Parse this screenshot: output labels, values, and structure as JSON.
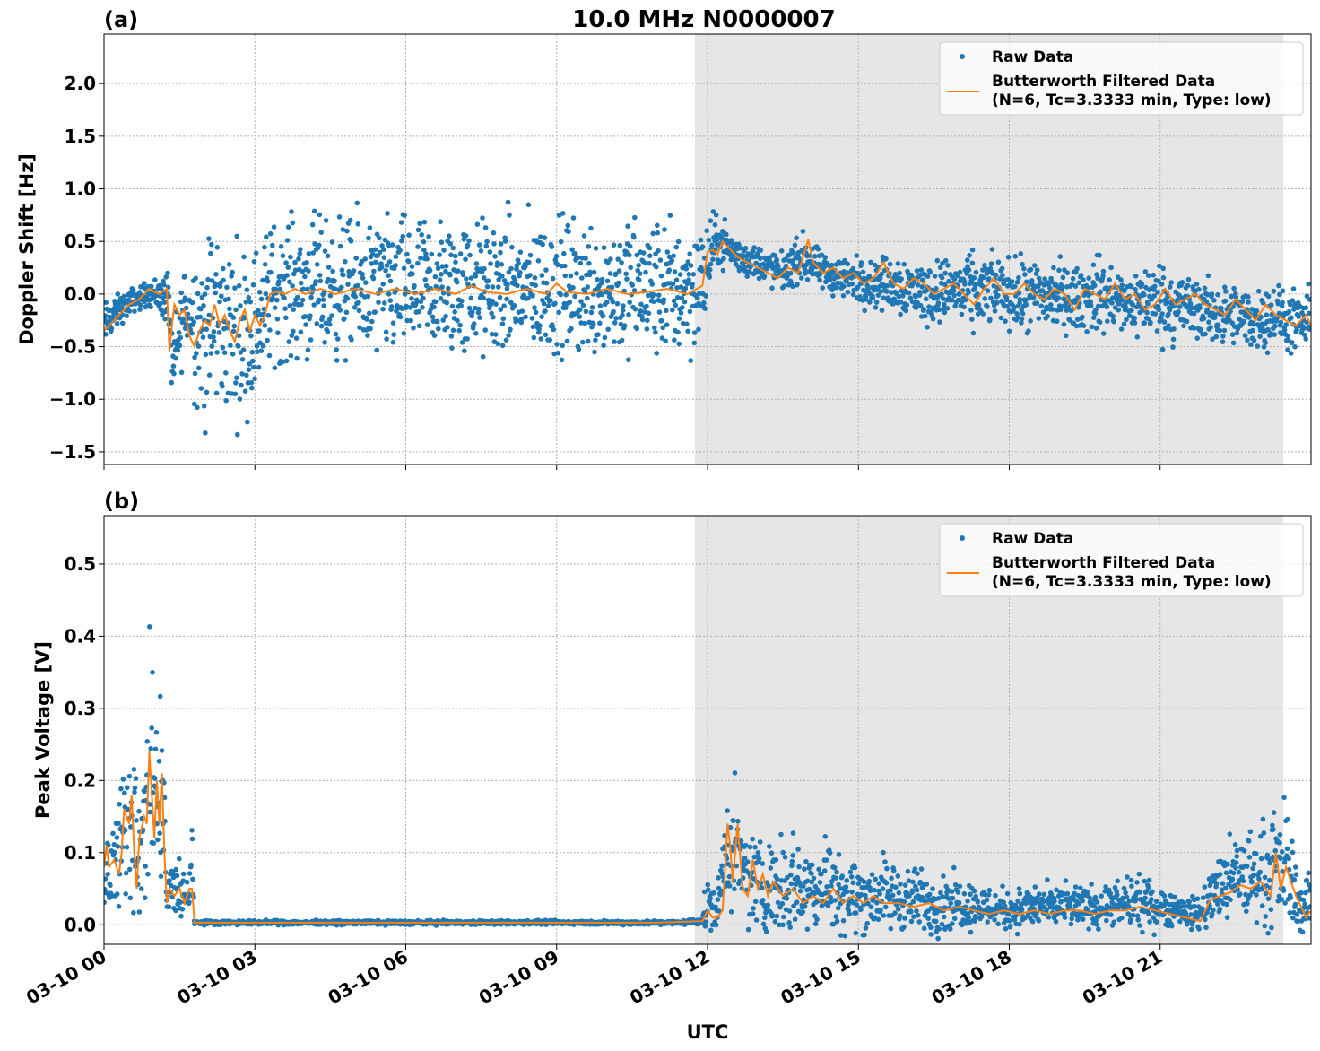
{
  "figure": {
    "title": "10.0 MHz N0000007",
    "xlabel": "UTC"
  },
  "colors": {
    "raw": "#1f77b4",
    "filtered": "#ff7f0e",
    "shade": "#e6e6e6",
    "grid": "#b0b0b0"
  },
  "chart_data": [
    {
      "type": "scatter",
      "panel_label": "(a)",
      "ylabel": "Doppler Shift [Hz]",
      "xlim": [
        "03-10 00:00",
        "03-10 24:00"
      ],
      "ylim": [
        -1.62,
        2.47
      ],
      "yticks": [
        -1.5,
        -1.0,
        -0.5,
        0.0,
        0.5,
        1.0,
        1.5,
        2.0
      ],
      "ytick_labels": [
        "−1.5",
        "−1.0",
        "−0.5",
        "0.0",
        "0.5",
        "1.0",
        "1.5",
        "2.0"
      ],
      "xtick_labels": [
        "03-10 00",
        "03-10 03",
        "03-10 06",
        "03-10 09",
        "03-10 12",
        "03-10 15",
        "03-10 18",
        "03-10 21"
      ],
      "xticks_hours": [
        0,
        3,
        6,
        9,
        12,
        15,
        18,
        21
      ],
      "shaded_hours": [
        11.75,
        23.45
      ],
      "grid": true,
      "legend": "top-right",
      "series": [
        {
          "name": "Raw Data",
          "kind": "points",
          "x_hours": [
            0.0,
            0.3,
            0.6,
            0.9,
            1.0,
            1.3,
            1.35,
            1.6,
            1.9,
            2.0,
            2.2,
            2.4,
            2.7,
            3.0,
            3.3,
            3.6,
            4.0,
            4.5,
            5.0,
            5.5,
            6.0,
            6.5,
            7.0,
            7.5,
            8.0,
            8.5,
            9.0,
            9.5,
            10.0,
            10.5,
            11.0,
            11.5,
            11.9,
            12.1,
            12.3,
            12.6,
            13.0,
            13.5,
            13.9,
            14.3,
            14.8,
            15.3,
            15.8,
            16.3,
            16.8,
            17.3,
            17.8,
            18.3,
            18.8,
            19.3,
            19.8,
            20.3,
            20.8,
            21.3,
            21.8,
            22.3,
            22.8,
            23.3,
            23.7,
            24.0
          ],
          "y_center": [
            -0.3,
            -0.15,
            -0.05,
            0.0,
            0.0,
            -0.05,
            -0.8,
            -0.1,
            -0.3,
            -0.4,
            -0.2,
            -0.3,
            -0.35,
            -0.3,
            0.0,
            0.05,
            0.05,
            0.05,
            0.05,
            0.05,
            0.05,
            0.05,
            0.05,
            0.05,
            0.05,
            0.05,
            0.05,
            0.05,
            0.05,
            0.05,
            0.05,
            0.05,
            0.1,
            0.45,
            0.5,
            0.35,
            0.3,
            0.2,
            0.35,
            0.2,
            0.15,
            0.1,
            0.1,
            0.0,
            0.05,
            0.0,
            0.05,
            -0.05,
            0.0,
            -0.05,
            0.0,
            -0.1,
            -0.05,
            -0.1,
            -0.15,
            -0.2,
            -0.25,
            -0.2,
            -0.3,
            -0.25
          ],
          "y_spread": [
            0.15,
            0.1,
            0.08,
            0.08,
            0.1,
            0.2,
            0.25,
            0.3,
            0.55,
            0.65,
            0.6,
            0.55,
            0.55,
            0.5,
            0.45,
            0.45,
            0.45,
            0.45,
            0.45,
            0.45,
            0.45,
            0.45,
            0.45,
            0.45,
            0.45,
            0.45,
            0.45,
            0.45,
            0.45,
            0.45,
            0.45,
            0.45,
            0.4,
            0.2,
            0.15,
            0.12,
            0.12,
            0.12,
            0.15,
            0.12,
            0.15,
            0.15,
            0.2,
            0.2,
            0.2,
            0.25,
            0.2,
            0.25,
            0.25,
            0.2,
            0.25,
            0.2,
            0.25,
            0.25,
            0.2,
            0.2,
            0.2,
            0.2,
            0.2,
            0.2
          ]
        },
        {
          "name": "Butterworth Filtered Data\n(N=6, Tc=3.3333 min, Type: low)",
          "legend_line1": "Butterworth Filtered Data",
          "legend_line2": "(N=6, Tc=3.3333 min, Type: low)",
          "kind": "line",
          "x_hours": [
            0.0,
            0.1,
            0.3,
            0.5,
            0.7,
            0.9,
            1.0,
            1.1,
            1.25,
            1.3,
            1.35,
            1.4,
            1.5,
            1.6,
            1.7,
            1.8,
            1.9,
            2.0,
            2.1,
            2.2,
            2.3,
            2.4,
            2.5,
            2.6,
            2.7,
            2.8,
            2.9,
            3.0,
            3.1,
            3.2,
            3.3,
            3.4,
            3.6,
            3.8,
            4.0,
            4.3,
            4.6,
            5.0,
            5.4,
            5.8,
            6.2,
            6.6,
            7.0,
            7.3,
            7.6,
            8.0,
            8.4,
            8.8,
            9.0,
            9.2,
            9.6,
            10.0,
            10.4,
            10.8,
            11.2,
            11.6,
            11.9,
            12.0,
            12.1,
            12.2,
            12.3,
            12.4,
            12.5,
            12.6,
            12.8,
            13.0,
            13.2,
            13.4,
            13.6,
            13.8,
            13.9,
            14.0,
            14.1,
            14.3,
            14.5,
            14.7,
            14.9,
            15.1,
            15.3,
            15.5,
            15.7,
            15.9,
            16.1,
            16.3,
            16.5,
            16.7,
            16.9,
            17.1,
            17.3,
            17.5,
            17.7,
            17.9,
            18.1,
            18.3,
            18.5,
            18.7,
            18.9,
            19.1,
            19.3,
            19.5,
            19.7,
            19.9,
            20.1,
            20.3,
            20.5,
            20.7,
            20.9,
            21.1,
            21.3,
            21.5,
            21.7,
            21.9,
            22.1,
            22.3,
            22.5,
            22.7,
            22.9,
            23.1,
            23.3,
            23.5,
            23.7,
            23.9,
            24.0
          ],
          "y": [
            -0.35,
            -0.3,
            -0.2,
            -0.1,
            -0.05,
            0.05,
            0.02,
            0.0,
            0.05,
            -0.55,
            -0.3,
            -0.1,
            -0.2,
            -0.15,
            -0.4,
            -0.5,
            -0.35,
            -0.25,
            -0.3,
            -0.1,
            -0.3,
            -0.2,
            -0.35,
            -0.45,
            -0.25,
            -0.15,
            -0.35,
            -0.2,
            -0.3,
            -0.2,
            0.0,
            0.02,
            0.0,
            0.05,
            0.0,
            0.05,
            0.0,
            0.05,
            0.0,
            0.05,
            0.0,
            0.05,
            0.0,
            0.08,
            0.02,
            0.0,
            0.05,
            0.0,
            0.1,
            0.02,
            0.0,
            0.05,
            0.0,
            0.02,
            0.05,
            0.0,
            0.08,
            0.4,
            0.42,
            0.38,
            0.5,
            0.45,
            0.4,
            0.35,
            0.3,
            0.25,
            0.2,
            0.15,
            0.25,
            0.2,
            0.35,
            0.52,
            0.3,
            0.2,
            0.25,
            0.15,
            0.2,
            0.1,
            0.15,
            0.3,
            0.1,
            0.05,
            0.15,
            0.1,
            0.0,
            0.05,
            0.1,
            0.0,
            -0.1,
            0.05,
            0.15,
            0.0,
            0.0,
            0.1,
            0.0,
            -0.05,
            0.05,
            0.0,
            -0.15,
            0.05,
            0.0,
            -0.05,
            0.1,
            -0.05,
            0.0,
            -0.15,
            -0.1,
            0.05,
            -0.1,
            -0.05,
            0.0,
            -0.1,
            -0.15,
            -0.2,
            -0.05,
            -0.15,
            -0.25,
            -0.1,
            -0.2,
            -0.25,
            -0.3,
            -0.2,
            -0.3
          ]
        }
      ]
    },
    {
      "type": "scatter",
      "panel_label": "(b)",
      "ylabel": "Peak Voltage [V]",
      "xlim": [
        "03-10 00:00",
        "03-10 24:00"
      ],
      "ylim": [
        -0.027,
        0.567
      ],
      "yticks": [
        0.0,
        0.1,
        0.2,
        0.3,
        0.4,
        0.5
      ],
      "ytick_labels": [
        "0.0",
        "0.1",
        "0.2",
        "0.3",
        "0.4",
        "0.5"
      ],
      "xtick_labels": [
        "03-10 00",
        "03-10 03",
        "03-10 06",
        "03-10 09",
        "03-10 12",
        "03-10 15",
        "03-10 18",
        "03-10 21"
      ],
      "xticks_hours": [
        0,
        3,
        6,
        9,
        12,
        15,
        18,
        21
      ],
      "shaded_hours": [
        11.75,
        23.45
      ],
      "grid": true,
      "legend": "top-right",
      "series": [
        {
          "name": "Raw Data",
          "kind": "points",
          "x_hours": [
            0.0,
            0.15,
            0.3,
            0.45,
            0.6,
            0.75,
            0.85,
            0.95,
            1.05,
            1.15,
            1.25,
            1.4,
            1.55,
            1.7,
            1.75,
            1.8,
            2.5,
            4.0,
            6.0,
            8.0,
            10.0,
            11.5,
            11.9,
            12.0,
            12.2,
            12.4,
            12.5,
            12.7,
            13.0,
            13.3,
            13.6,
            14.0,
            14.4,
            14.8,
            15.2,
            15.6,
            16.0,
            16.5,
            17.0,
            17.5,
            18.0,
            18.5,
            19.0,
            19.5,
            20.0,
            20.5,
            21.0,
            21.4,
            21.8,
            22.0,
            22.4,
            22.8,
            23.2,
            23.5,
            23.8,
            24.0
          ],
          "y_center": [
            0.09,
            0.07,
            0.1,
            0.13,
            0.17,
            0.08,
            0.18,
            0.22,
            0.15,
            0.2,
            0.04,
            0.05,
            0.04,
            0.05,
            0.1,
            0.003,
            0.003,
            0.003,
            0.003,
            0.003,
            0.003,
            0.003,
            0.006,
            0.03,
            0.02,
            0.12,
            0.1,
            0.07,
            0.06,
            0.05,
            0.06,
            0.05,
            0.06,
            0.04,
            0.04,
            0.04,
            0.035,
            0.03,
            0.03,
            0.025,
            0.02,
            0.025,
            0.025,
            0.025,
            0.025,
            0.03,
            0.025,
            0.02,
            0.015,
            0.04,
            0.06,
            0.07,
            0.07,
            0.09,
            0.02,
            0.04
          ],
          "y_spread": [
            0.05,
            0.05,
            0.06,
            0.09,
            0.1,
            0.06,
            0.11,
            0.12,
            0.1,
            0.11,
            0.03,
            0.03,
            0.03,
            0.03,
            0.03,
            0.002,
            0.002,
            0.002,
            0.002,
            0.002,
            0.002,
            0.002,
            0.004,
            0.03,
            0.02,
            0.06,
            0.06,
            0.05,
            0.045,
            0.04,
            0.05,
            0.04,
            0.045,
            0.035,
            0.035,
            0.035,
            0.03,
            0.03,
            0.025,
            0.02,
            0.02,
            0.02,
            0.02,
            0.02,
            0.02,
            0.025,
            0.02,
            0.015,
            0.015,
            0.03,
            0.04,
            0.045,
            0.05,
            0.06,
            0.02,
            0.035
          ]
        },
        {
          "name": "Butterworth Filtered Data\n(N=6, Tc=3.3333 min, Type: low)",
          "legend_line1": "Butterworth Filtered Data",
          "legend_line2": "(N=6, Tc=3.3333 min, Type: low)",
          "kind": "line",
          "x_hours": [
            0.0,
            0.05,
            0.1,
            0.2,
            0.3,
            0.35,
            0.4,
            0.5,
            0.55,
            0.6,
            0.65,
            0.7,
            0.8,
            0.85,
            0.9,
            0.95,
            1.0,
            1.05,
            1.1,
            1.15,
            1.2,
            1.25,
            1.3,
            1.4,
            1.5,
            1.6,
            1.7,
            1.75,
            1.8,
            2.0,
            3.0,
            5.0,
            7.0,
            9.0,
            11.0,
            11.9,
            12.0,
            12.1,
            12.2,
            12.3,
            12.4,
            12.45,
            12.5,
            12.6,
            12.7,
            12.8,
            12.9,
            13.0,
            13.1,
            13.2,
            13.3,
            13.5,
            13.7,
            13.9,
            14.1,
            14.3,
            14.5,
            14.7,
            14.9,
            15.1,
            15.3,
            15.5,
            15.8,
            16.1,
            16.4,
            16.7,
            17.0,
            17.3,
            17.6,
            17.9,
            18.2,
            18.5,
            18.8,
            19.1,
            19.4,
            19.7,
            20.0,
            20.3,
            20.6,
            20.9,
            21.2,
            21.5,
            21.8,
            22.0,
            22.2,
            22.4,
            22.6,
            22.8,
            23.0,
            23.2,
            23.3,
            23.4,
            23.5,
            23.7,
            23.9,
            24.0
          ],
          "y": [
            0.08,
            0.11,
            0.08,
            0.09,
            0.07,
            0.1,
            0.16,
            0.14,
            0.18,
            0.1,
            0.05,
            0.12,
            0.15,
            0.14,
            0.24,
            0.18,
            0.12,
            0.2,
            0.14,
            0.21,
            0.1,
            0.03,
            0.05,
            0.04,
            0.05,
            0.03,
            0.05,
            0.05,
            0.003,
            0.003,
            0.003,
            0.003,
            0.003,
            0.003,
            0.003,
            0.005,
            0.02,
            0.01,
            0.01,
            0.02,
            0.14,
            0.11,
            0.06,
            0.14,
            0.05,
            0.04,
            0.09,
            0.05,
            0.07,
            0.04,
            0.06,
            0.04,
            0.05,
            0.03,
            0.04,
            0.03,
            0.05,
            0.03,
            0.04,
            0.03,
            0.04,
            0.03,
            0.03,
            0.025,
            0.03,
            0.02,
            0.025,
            0.02,
            0.015,
            0.02,
            0.015,
            0.02,
            0.015,
            0.02,
            0.02,
            0.015,
            0.02,
            0.02,
            0.025,
            0.02,
            0.015,
            0.01,
            0.005,
            0.035,
            0.04,
            0.045,
            0.055,
            0.05,
            0.06,
            0.04,
            0.1,
            0.05,
            0.08,
            0.04,
            0.01,
            0.02
          ]
        }
      ]
    }
  ]
}
